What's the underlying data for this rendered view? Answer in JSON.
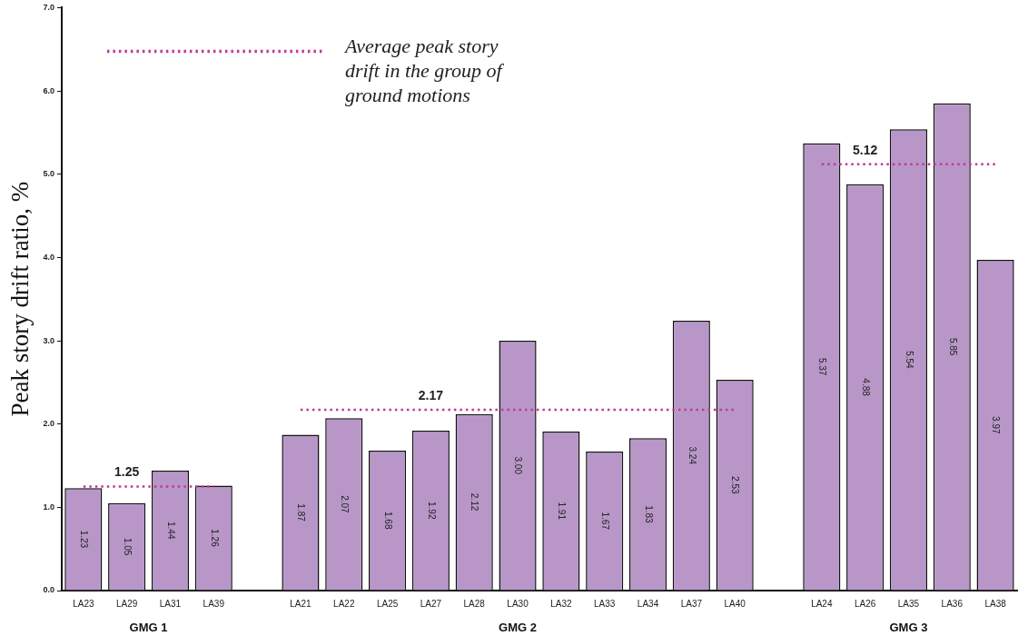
{
  "chart_data": {
    "type": "bar",
    "ylabel": "Peak story drift ratio, %",
    "categories": [
      "LA23",
      "LA29",
      "LA31",
      "LA39",
      null,
      "LA21",
      "LA22",
      "LA25",
      "LA27",
      "LA28",
      "LA30",
      "LA32",
      "LA33",
      "LA34",
      "LA37",
      "LA40",
      null,
      "LA24",
      "LA26",
      "LA35",
      "LA36",
      "LA38"
    ],
    "series": [
      {
        "color": "#b897c8",
        "values": [
          1.23,
          1.05,
          1.44,
          1.26,
          null,
          1.87,
          2.07,
          1.68,
          1.92,
          2.12,
          3.0,
          1.91,
          1.67,
          1.83,
          3.24,
          2.53,
          null,
          5.37,
          4.88,
          5.54,
          5.85,
          3.97
        ],
        "value_labels": [
          "1.23",
          "1.05",
          "1.44",
          "1.26",
          null,
          "1.87",
          "2.07",
          "1.68",
          "1.92",
          "2.12",
          "3.00",
          "1.91",
          "1.67",
          "1.83",
          "3.24",
          "2.53",
          null,
          "5.37",
          "4.88",
          "5.54",
          "5.85",
          "3.97"
        ]
      },
      {
        "type": "line",
        "name": "Average peak story drift in the group of ground motions",
        "color": "#c0399a",
        "line_style": "dotted",
        "marker": "none",
        "values": [
          1.25,
          1.25,
          1.25,
          1.25,
          null,
          2.17,
          2.17,
          2.17,
          2.17,
          2.17,
          2.17,
          2.17,
          2.17,
          2.17,
          2.17,
          2.17,
          null,
          5.12,
          5.12,
          5.12,
          5.12,
          5.12
        ],
        "value_labels": [
          null,
          "1.25",
          null,
          null,
          null,
          null,
          null,
          null,
          "2.17",
          null,
          null,
          null,
          null,
          null,
          null,
          null,
          null,
          null,
          "5.12",
          null,
          null,
          null
        ]
      }
    ],
    "annotations": [
      "GMG 1",
      "GMG 2",
      "GMG 3"
    ],
    "ylim": [
      0,
      7
    ],
    "yticks": [
      {
        "value": 0,
        "label": "0.0"
      },
      {
        "value": 1,
        "label": "1.0"
      },
      {
        "value": 2,
        "label": "2.0"
      },
      {
        "value": 3,
        "label": "3.0"
      },
      {
        "value": 4,
        "label": "4.0"
      },
      {
        "value": 5,
        "label": "5.0"
      },
      {
        "value": 6,
        "label": "6.0"
      },
      {
        "value": 7,
        "label": "7.0"
      }
    ],
    "grid": false,
    "legend": "top left"
  }
}
